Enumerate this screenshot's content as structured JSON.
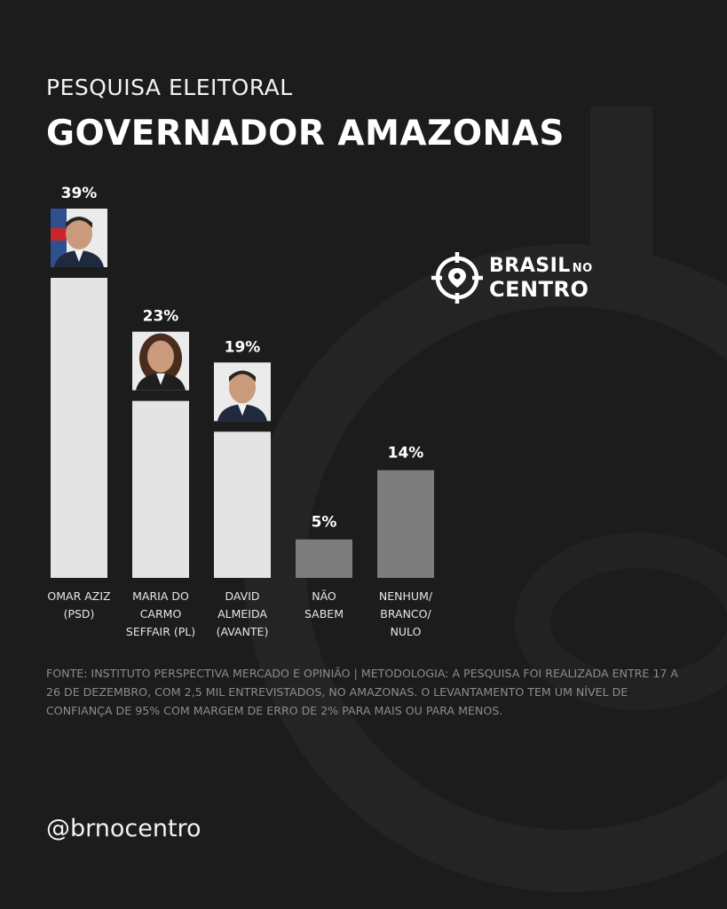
{
  "header": {
    "kicker": "PESQUISA ELEITORAL",
    "title": "GOVERNADOR AMAZONAS"
  },
  "brand": {
    "line1": "BRASIL",
    "line1_small": "NO",
    "line2": "CENTRO",
    "icon": "crosshair-pin-icon"
  },
  "colors": {
    "background": "#1c1c1c",
    "candidate_bar": "#e4e4e4",
    "other_bar": "#7d7d7d",
    "text": "#ffffff",
    "muted_text": "#8c8c8c"
  },
  "chart_data": {
    "type": "bar",
    "categories": [
      [
        "OMAR AZIZ",
        "(PSD)"
      ],
      [
        "MARIA DO",
        "CARMO",
        "SEFFAIR (PL)"
      ],
      [
        "DAVID",
        "ALMEIDA",
        "(AVANTE)"
      ],
      [
        "NÃO",
        "SABEM"
      ],
      [
        "NENHUM/",
        "BRANCO/",
        "NULO"
      ]
    ],
    "values": [
      39,
      23,
      19,
      5,
      14
    ],
    "value_labels": [
      "39%",
      "23%",
      "19%",
      "5%",
      "14%"
    ],
    "bar_kind": [
      "candidate",
      "candidate",
      "candidate",
      "other",
      "other"
    ],
    "has_photo": [
      true,
      true,
      true,
      false,
      false
    ],
    "ylim": [
      0,
      39
    ]
  },
  "footer": {
    "source": "FONTE: INSTITUTO PERSPECTIVA MERCADO E OPINIÃO | METODOLOGIA: A PESQUISA FOI REALIZADA ENTRE 17 A 26 DE DEZEMBRO, COM 2,5 MIL ENTREVISTADOS, NO AMAZONAS. O LEVANTAMENTO TEM UM NÍVEL DE CONFIANÇA DE 95% COM MARGEM DE ERRO DE 2% PARA MAIS OU PARA MENOS.",
    "handle": "@brnocentro"
  }
}
